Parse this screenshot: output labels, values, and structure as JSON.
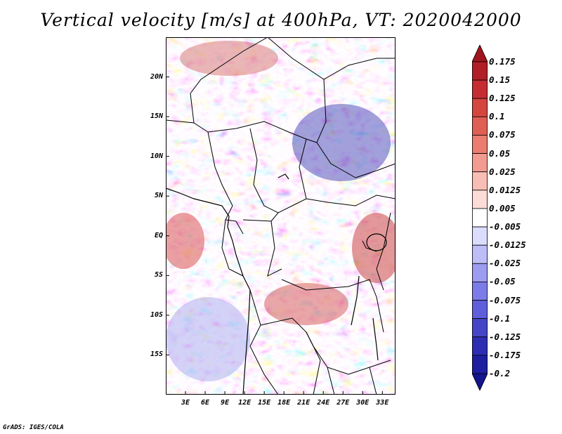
{
  "title": "Vertical velocity [m/s] at 400hPa, VT: 2020042000",
  "credit": "GrADS: IGES/COLA",
  "map": {
    "lon_range": [
      0,
      35
    ],
    "lat_range": [
      -20,
      25
    ],
    "lat_ticks": [
      {
        "value": 20,
        "label": "20N"
      },
      {
        "value": 15,
        "label": "15N"
      },
      {
        "value": 10,
        "label": "10N"
      },
      {
        "value": 5,
        "label": "5N"
      },
      {
        "value": 0,
        "label": "EQ"
      },
      {
        "value": -5,
        "label": "5S"
      },
      {
        "value": -10,
        "label": "10S"
      },
      {
        "value": -15,
        "label": "15S"
      }
    ],
    "lon_ticks": [
      {
        "value": 3,
        "label": "3E"
      },
      {
        "value": 6,
        "label": "6E"
      },
      {
        "value": 9,
        "label": "9E"
      },
      {
        "value": 12,
        "label": "12E"
      },
      {
        "value": 15,
        "label": "15E"
      },
      {
        "value": 18,
        "label": "18E"
      },
      {
        "value": 21,
        "label": "21E"
      },
      {
        "value": 24,
        "label": "24E"
      },
      {
        "value": 27,
        "label": "27E"
      },
      {
        "value": 30,
        "label": "30E"
      },
      {
        "value": 33,
        "label": "33E"
      }
    ]
  },
  "colorbar": {
    "labels": [
      "0.175",
      "0.15",
      "0.125",
      "0.1",
      "0.075",
      "0.05",
      "0.025",
      "0.0125",
      "0.005",
      "-0.005",
      "-0.0125",
      "-0.025",
      "-0.05",
      "-0.075",
      "-0.1",
      "-0.125",
      "-0.175",
      "-0.2"
    ],
    "colors": [
      "#a0141e",
      "#b21e26",
      "#c52d32",
      "#d5463f",
      "#e05f55",
      "#ea7c70",
      "#f29b90",
      "#f8bdb5",
      "#fcdcd7",
      "#ffffff",
      "#dcdcfc",
      "#bdbdf8",
      "#9c9cf0",
      "#7c7ce8",
      "#5f5fdc",
      "#4545c8",
      "#2d2db4",
      "#1e1ea0",
      "#14148c"
    ]
  }
}
